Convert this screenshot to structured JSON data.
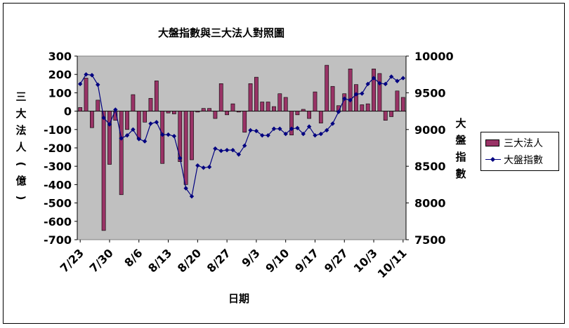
{
  "chart_data": {
    "type": "bar+line",
    "title": "大盤指數與三大法人對照圖",
    "xlabel": "日期",
    "ylabel_left": [
      "三",
      "大",
      "法",
      "人",
      "(",
      "億",
      ")"
    ],
    "ylabel_right": [
      "大",
      "盤",
      "指",
      "數"
    ],
    "left_axis": {
      "ylim": [
        -700,
        300
      ],
      "ticks": [
        300,
        200,
        100,
        0,
        -100,
        -200,
        -300,
        -400,
        -500,
        -600,
        -700
      ],
      "tick_labels": [
        "300",
        "200",
        "100",
        "0",
        "-100",
        "-200",
        "-300",
        "-400",
        "-500",
        "-600",
        "-700"
      ]
    },
    "right_axis": {
      "ylim": [
        7500,
        10000
      ],
      "ticks": [
        10000,
        9500,
        9000,
        8500,
        8000,
        7500
      ],
      "tick_labels": [
        "10000",
        "9500",
        "9000",
        "8500",
        "8000",
        "7500"
      ]
    },
    "x_tick_labels": [
      "7/23",
      "7/30",
      "8/6",
      "8/13",
      "8/20",
      "8/27",
      "9/3",
      "9/10",
      "9/17",
      "9/27",
      "10/3",
      "10/11"
    ],
    "x_tick_index": [
      0,
      5,
      10,
      15,
      20,
      25,
      30,
      35,
      40,
      45,
      50,
      55
    ],
    "grid": false,
    "plot_background": "#c0c0c0",
    "legend_position": "right",
    "series": [
      {
        "name": "三大法人",
        "kind": "bar",
        "color": "#993366",
        "values": [
          20,
          180,
          -90,
          60,
          -650,
          -290,
          -50,
          -455,
          -100,
          90,
          -150,
          -60,
          70,
          165,
          -285,
          -10,
          -15,
          -275,
          -400,
          -265,
          -5,
          15,
          15,
          -40,
          150,
          -20,
          40,
          -5,
          -115,
          150,
          185,
          50,
          50,
          25,
          95,
          75,
          -130,
          -20,
          10,
          -40,
          105,
          -65,
          250,
          135,
          30,
          95,
          230,
          145,
          35,
          40,
          230,
          205,
          -50,
          -30,
          110,
          75
        ]
      },
      {
        "name": "大盤指數",
        "kind": "line",
        "color": "#000080",
        "values": [
          9620,
          9750,
          9740,
          9610,
          9160,
          9070,
          9270,
          8880,
          8920,
          9000,
          8870,
          8840,
          9080,
          9100,
          8930,
          8930,
          8910,
          8610,
          8200,
          8090,
          8510,
          8480,
          8490,
          8740,
          8710,
          8720,
          8720,
          8660,
          8780,
          8990,
          8980,
          8920,
          8920,
          9010,
          9010,
          8940,
          9010,
          9020,
          8940,
          9040,
          8920,
          8940,
          8990,
          9080,
          9240,
          9420,
          9400,
          9480,
          9490,
          9620,
          9700,
          9630,
          9620,
          9720,
          9660,
          9700
        ]
      }
    ]
  }
}
